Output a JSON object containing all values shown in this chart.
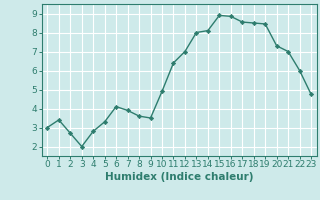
{
  "x": [
    0,
    1,
    2,
    3,
    4,
    5,
    6,
    7,
    8,
    9,
    10,
    11,
    12,
    13,
    14,
    15,
    16,
    17,
    18,
    19,
    20,
    21,
    22,
    23
  ],
  "y": [
    3.0,
    3.4,
    2.7,
    2.0,
    2.8,
    3.3,
    4.1,
    3.9,
    3.6,
    3.5,
    4.9,
    6.4,
    7.0,
    8.0,
    8.1,
    8.9,
    8.85,
    8.55,
    8.5,
    8.45,
    7.3,
    7.0,
    6.0,
    4.75
  ],
  "line_color": "#2e7d6e",
  "marker": "D",
  "marker_size": 2.2,
  "line_width": 1.0,
  "bg_color": "#ceeaea",
  "grid_color": "#ffffff",
  "xlabel": "Humidex (Indice chaleur)",
  "xlabel_fontsize": 7.5,
  "tick_fontsize": 6.5,
  "ylim": [
    1.5,
    9.5
  ],
  "xlim": [
    -0.5,
    23.5
  ],
  "yticks": [
    2,
    3,
    4,
    5,
    6,
    7,
    8,
    9
  ],
  "xticks": [
    0,
    1,
    2,
    3,
    4,
    5,
    6,
    7,
    8,
    9,
    10,
    11,
    12,
    13,
    14,
    15,
    16,
    17,
    18,
    19,
    20,
    21,
    22,
    23
  ]
}
